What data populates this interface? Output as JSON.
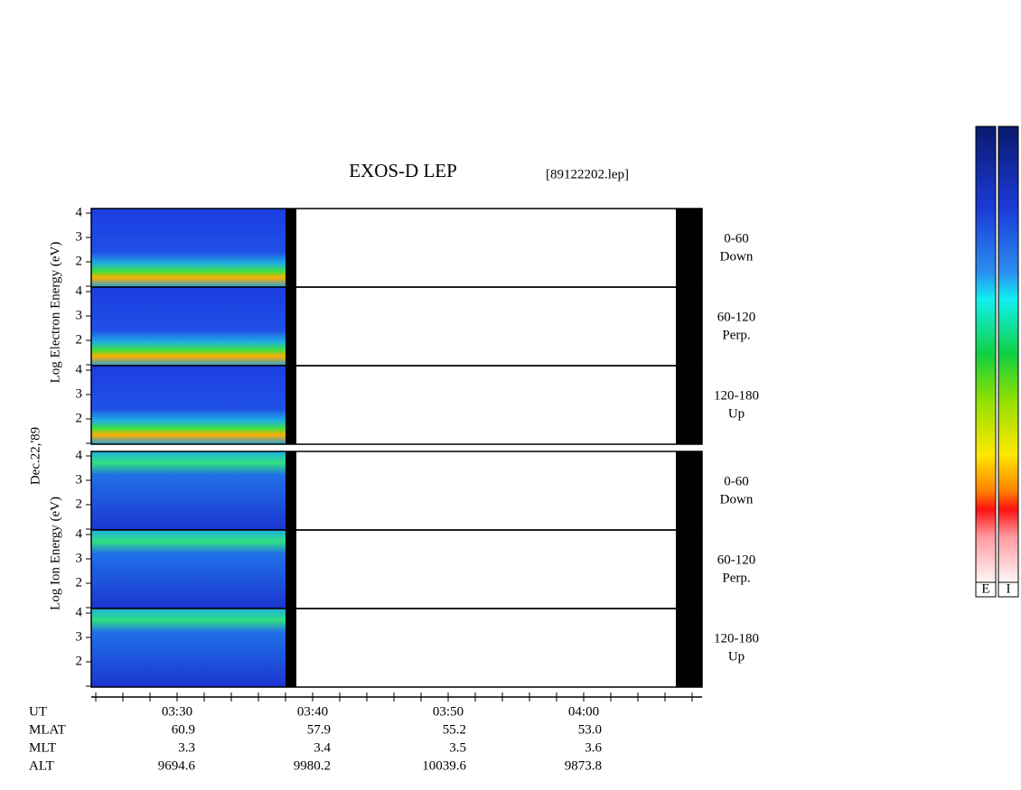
{
  "title": "EXOS-D LEP",
  "file": "[89122202.lep]",
  "date": "Dec.22,'89",
  "electron_axis": "Log  Electron  Energy (eV)",
  "ion_axis": "Log  Ion  Energy (eV)",
  "panels": [
    {
      "angle": "0-60",
      "direction": "Down"
    },
    {
      "angle": "60-120",
      "direction": "Perp."
    },
    {
      "angle": "120-180",
      "direction": "Up"
    }
  ],
  "energy_ticks": [
    2,
    3,
    4
  ],
  "time_axis": {
    "rows": [
      {
        "name": "UT",
        "values": [
          "03:30",
          "03:40",
          "03:50",
          "04:00"
        ]
      },
      {
        "name": "MLAT",
        "values": [
          "60.9",
          "57.9",
          "55.2",
          "53.0"
        ]
      },
      {
        "name": "MLT",
        "values": [
          "3.3",
          "3.4",
          "3.5",
          "3.6"
        ]
      },
      {
        "name": "ALT",
        "values": [
          "9694.6",
          "9980.2",
          "10039.6",
          "9873.8"
        ]
      }
    ]
  },
  "colorbars": [
    "E",
    "I"
  ]
}
